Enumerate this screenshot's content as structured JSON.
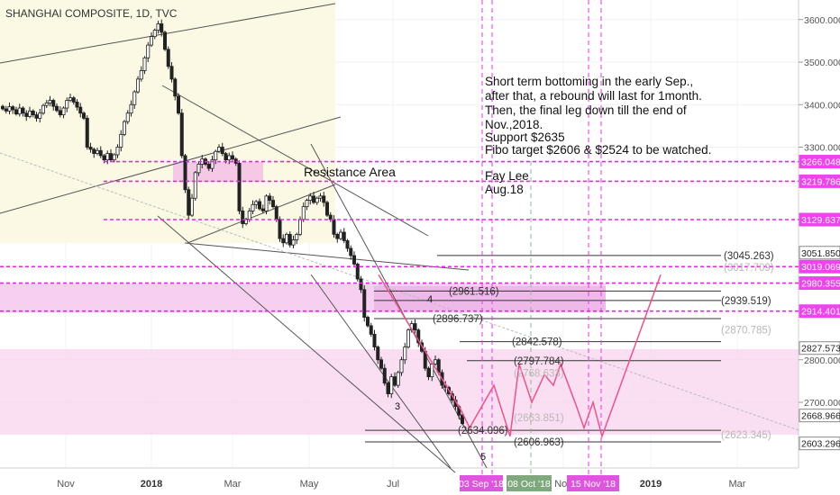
{
  "chart_data": {
    "type": "candlestick",
    "title": "SHANGHAI COMPOSITE, 1D, TVC",
    "symbol": "SHANGHAI COMPOSITE",
    "interval": "1D",
    "source": "TVC",
    "price_scale": {
      "ticks": [
        2700,
        2800,
        3300,
        3400,
        3500,
        3600
      ],
      "tick_labels": [
        "2700.000",
        "2800.000",
        "3300.000",
        "3400.000",
        "3500.000",
        "3600.000"
      ],
      "ylim": [
        2560,
        3680
      ]
    },
    "time_axis": {
      "labels": [
        "Nov",
        "2018",
        "Mar",
        "May",
        "Jul",
        "Sep",
        "Nov",
        "2019",
        "Mar"
      ],
      "label_bold": [
        false,
        true,
        false,
        false,
        false,
        false,
        false,
        true,
        false
      ]
    },
    "date_markers": [
      {
        "label": "03 Sep '18",
        "type": "date"
      },
      {
        "label": "08 Oct '18",
        "type": "date"
      },
      {
        "label": "15 Nov '18",
        "type": "date"
      }
    ],
    "price_badges": [
      {
        "value": 3266.048,
        "label": "3266.048",
        "style": "magenta"
      },
      {
        "value": 3219.786,
        "label": "3219.786",
        "style": "magenta"
      },
      {
        "value": 3129.637,
        "label": "3129.637",
        "style": "magenta"
      },
      {
        "value": 3051.85,
        "label": "3051.850",
        "style": "plain"
      },
      {
        "value": 3019.069,
        "label": "3019.069",
        "style": "magenta"
      },
      {
        "value": 2980.355,
        "label": "2980.355",
        "style": "magenta"
      },
      {
        "value": 2914.401,
        "label": "2914.401",
        "style": "magenta"
      },
      {
        "value": 2827.573,
        "label": "2827.573",
        "style": "plain"
      },
      {
        "value": 2668.966,
        "label": "2668.966",
        "style": "plain"
      },
      {
        "value": 2603.296,
        "label": "2603.296",
        "style": "plain"
      }
    ],
    "level_labels": [
      {
        "value": 3045.263,
        "label": "(3045.263)",
        "faded": false
      },
      {
        "value": 3017.709,
        "label": "(3017.709)",
        "faded": true
      },
      {
        "value": 2961.516,
        "label": "(2961.516)",
        "faded": false
      },
      {
        "value": 2939.519,
        "label": "(2939.519)",
        "faded": false
      },
      {
        "value": 2896.737,
        "label": "(2896.737)",
        "faded": false
      },
      {
        "value": 2870.785,
        "label": "(2870.785)",
        "faded": true
      },
      {
        "value": 2842.578,
        "label": "(2842.578)",
        "faded": false
      },
      {
        "value": 2797.784,
        "label": "(2797.784)",
        "faded": false
      },
      {
        "value": 2768.633,
        "label": "(2768.633)",
        "faded": true
      },
      {
        "value": 2663.851,
        "label": "(2663.851)",
        "faded": true
      },
      {
        "value": 2634.096,
        "label": "(2634.096)",
        "faded": false
      },
      {
        "value": 2623.345,
        "label": "(2623.345)",
        "faded": true
      },
      {
        "value": 2606.963,
        "label": "(2606.963)",
        "faded": false
      }
    ],
    "wave_labels": [
      "4",
      "3",
      "5"
    ],
    "resistance_label": "Resistance Area",
    "annotation": {
      "lines": [
        "Short term bottoming in the early Sep.,",
        "after that, a rebound will last for 1month.",
        "Then, the final leg down till the end of",
        "Nov.,2018.",
        "Support $2635",
        "Fibo target $2606 & $2524 to be watched."
      ],
      "author": "Fay Lee",
      "date": "Aug.18"
    },
    "colors": {
      "bull": "#ffffff",
      "bear": "#222222",
      "level_dash": "#ee22ee",
      "projection": "#f0508c",
      "zone_fill": "#f7c6ec",
      "date_badge": "#e055e0",
      "date_badge_green": "#7fa87f"
    },
    "candle_closes": [
      3390,
      3385,
      3395,
      3388,
      3378,
      3392,
      3380,
      3372,
      3385,
      3376,
      3368,
      3380,
      3398,
      3404,
      3410,
      3396,
      3386,
      3376,
      3392,
      3410,
      3416,
      3406,
      3394,
      3380,
      3368,
      3300,
      3295,
      3285,
      3292,
      3280,
      3270,
      3285,
      3270,
      3282,
      3300,
      3330,
      3360,
      3380,
      3400,
      3430,
      3460,
      3480,
      3510,
      3540,
      3560,
      3575,
      3590,
      3570,
      3530,
      3490,
      3460,
      3420,
      3380,
      3280,
      3200,
      3140,
      3180,
      3240,
      3260,
      3272,
      3260,
      3250,
      3270,
      3290,
      3300,
      3285,
      3270,
      3280,
      3272,
      3262,
      3150,
      3120,
      3130,
      3150,
      3165,
      3172,
      3155,
      3150,
      3185,
      3175,
      3160,
      3130,
      3085,
      3075,
      3095,
      3070,
      3082,
      3095,
      3130,
      3160,
      3175,
      3185,
      3170,
      3180,
      3185,
      3170,
      3140,
      3130,
      3095,
      3085,
      3100,
      3080,
      3062,
      3045,
      3025,
      2990,
      2965,
      2900,
      2880,
      2860,
      2830,
      2800,
      2780,
      2745,
      2720,
      2760,
      2740,
      2770,
      2800,
      2830,
      2870,
      2885,
      2870,
      2840,
      2820,
      2780,
      2760,
      2790,
      2800,
      2770,
      2740,
      2735,
      2720,
      2705,
      2690,
      2670,
      2650
    ],
    "projection_path": [
      3000,
      2680,
      2640,
      2740,
      2620,
      2790,
      2700,
      2765,
      2740,
      2790,
      2700,
      2640,
      2700,
      2620,
      3000
    ]
  }
}
